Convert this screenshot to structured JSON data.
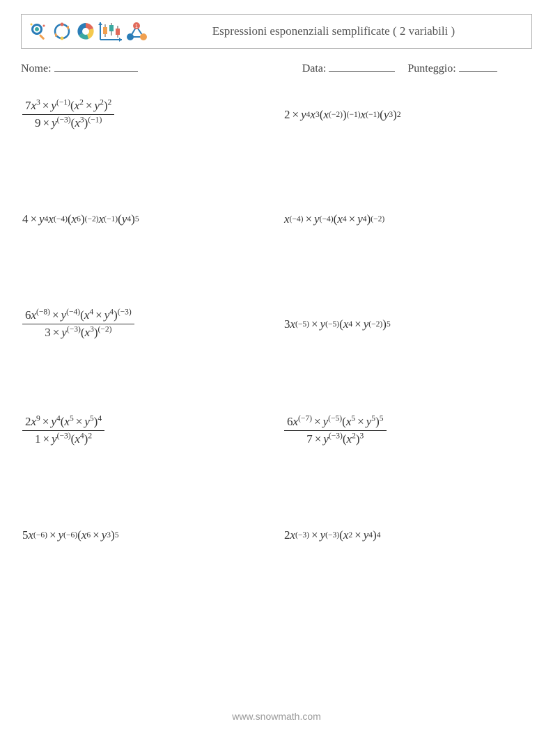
{
  "header": {
    "title": "Espressioni esponenziali semplificate ( 2 variabili )"
  },
  "meta": {
    "name_label": "Nome:",
    "date_label": "Data:",
    "score_label": "Punteggio:"
  },
  "icons": {
    "colors": {
      "blue": "#2a7db8",
      "orange": "#f0a050",
      "red": "#e26a5a",
      "teal": "#3aa8a0",
      "yellow": "#f4c94e",
      "green": "#7cb342"
    }
  },
  "problems": [
    {
      "type": "fraction",
      "numerator": [
        {
          "t": "coef",
          "v": "7"
        },
        {
          "t": "var",
          "v": "x"
        },
        {
          "t": "sup",
          "v": "3"
        },
        {
          "t": "op",
          "v": "×"
        },
        {
          "t": "var",
          "v": "y"
        },
        {
          "t": "sup",
          "v": "(−1)"
        },
        {
          "t": "txt",
          "v": "("
        },
        {
          "t": "var",
          "v": "x"
        },
        {
          "t": "sup",
          "v": "2"
        },
        {
          "t": "op",
          "v": "×"
        },
        {
          "t": "var",
          "v": "y"
        },
        {
          "t": "sup",
          "v": "2"
        },
        {
          "t": "txt",
          "v": ")"
        },
        {
          "t": "sup",
          "v": "2"
        }
      ],
      "denominator": [
        {
          "t": "coef",
          "v": "9"
        },
        {
          "t": "op",
          "v": "×"
        },
        {
          "t": "var",
          "v": "y"
        },
        {
          "t": "sup",
          "v": "(−3)"
        },
        {
          "t": "txt",
          "v": "("
        },
        {
          "t": "var",
          "v": "x"
        },
        {
          "t": "sup",
          "v": "3"
        },
        {
          "t": "txt",
          "v": ")"
        },
        {
          "t": "sup",
          "v": "(−1)"
        }
      ]
    },
    {
      "type": "inline",
      "tokens": [
        {
          "t": "coef",
          "v": "2"
        },
        {
          "t": "op",
          "v": "×"
        },
        {
          "t": "var",
          "v": "y"
        },
        {
          "t": "sup",
          "v": "4"
        },
        {
          "t": "var",
          "v": "x"
        },
        {
          "t": "sup",
          "v": "3"
        },
        {
          "t": "txt",
          "v": "("
        },
        {
          "t": "var",
          "v": "x"
        },
        {
          "t": "sup",
          "v": "(−2)"
        },
        {
          "t": "txt",
          "v": ")"
        },
        {
          "t": "sup",
          "v": "(−1)"
        },
        {
          "t": "var",
          "v": "x"
        },
        {
          "t": "sup",
          "v": "(−1)"
        },
        {
          "t": "txt",
          "v": "("
        },
        {
          "t": "var",
          "v": "y"
        },
        {
          "t": "sup",
          "v": "3"
        },
        {
          "t": "txt",
          "v": ")"
        },
        {
          "t": "sup",
          "v": "2"
        }
      ]
    },
    {
      "type": "inline",
      "tokens": [
        {
          "t": "coef",
          "v": "4"
        },
        {
          "t": "op",
          "v": "×"
        },
        {
          "t": "var",
          "v": "y"
        },
        {
          "t": "sup",
          "v": "4"
        },
        {
          "t": "var",
          "v": "x"
        },
        {
          "t": "sup",
          "v": "(−4)"
        },
        {
          "t": "txt",
          "v": "("
        },
        {
          "t": "var",
          "v": "x"
        },
        {
          "t": "sup",
          "v": "6"
        },
        {
          "t": "txt",
          "v": ")"
        },
        {
          "t": "sup",
          "v": "(−2)"
        },
        {
          "t": "var",
          "v": "x"
        },
        {
          "t": "sup",
          "v": "(−1)"
        },
        {
          "t": "txt",
          "v": "("
        },
        {
          "t": "var",
          "v": "y"
        },
        {
          "t": "sup",
          "v": "4"
        },
        {
          "t": "txt",
          "v": ")"
        },
        {
          "t": "sup",
          "v": "5"
        }
      ]
    },
    {
      "type": "inline",
      "tokens": [
        {
          "t": "var",
          "v": "x"
        },
        {
          "t": "sup",
          "v": "(−4)"
        },
        {
          "t": "op",
          "v": "×"
        },
        {
          "t": "var",
          "v": "y"
        },
        {
          "t": "sup",
          "v": "(−4)"
        },
        {
          "t": "txt",
          "v": "("
        },
        {
          "t": "var",
          "v": "x"
        },
        {
          "t": "sup",
          "v": "4"
        },
        {
          "t": "op",
          "v": "×"
        },
        {
          "t": "var",
          "v": "y"
        },
        {
          "t": "sup",
          "v": "4"
        },
        {
          "t": "txt",
          "v": ")"
        },
        {
          "t": "sup",
          "v": "(−2)"
        }
      ]
    },
    {
      "type": "fraction",
      "numerator": [
        {
          "t": "coef",
          "v": "6"
        },
        {
          "t": "var",
          "v": "x"
        },
        {
          "t": "sup",
          "v": "(−8)"
        },
        {
          "t": "op",
          "v": "×"
        },
        {
          "t": "var",
          "v": "y"
        },
        {
          "t": "sup",
          "v": "(−4)"
        },
        {
          "t": "txt",
          "v": "("
        },
        {
          "t": "var",
          "v": "x"
        },
        {
          "t": "sup",
          "v": "4"
        },
        {
          "t": "op",
          "v": "×"
        },
        {
          "t": "var",
          "v": "y"
        },
        {
          "t": "sup",
          "v": "4"
        },
        {
          "t": "txt",
          "v": ")"
        },
        {
          "t": "sup",
          "v": "(−3)"
        }
      ],
      "denominator": [
        {
          "t": "coef",
          "v": "3"
        },
        {
          "t": "op",
          "v": "×"
        },
        {
          "t": "var",
          "v": "y"
        },
        {
          "t": "sup",
          "v": "(−3)"
        },
        {
          "t": "txt",
          "v": "("
        },
        {
          "t": "var",
          "v": "x"
        },
        {
          "t": "sup",
          "v": "3"
        },
        {
          "t": "txt",
          "v": ")"
        },
        {
          "t": "sup",
          "v": "(−2)"
        }
      ]
    },
    {
      "type": "inline",
      "tokens": [
        {
          "t": "coef",
          "v": "3"
        },
        {
          "t": "var",
          "v": "x"
        },
        {
          "t": "sup",
          "v": "(−5)"
        },
        {
          "t": "op",
          "v": "×"
        },
        {
          "t": "var",
          "v": "y"
        },
        {
          "t": "sup",
          "v": "(−5)"
        },
        {
          "t": "txt",
          "v": "("
        },
        {
          "t": "var",
          "v": "x"
        },
        {
          "t": "sup",
          "v": "4"
        },
        {
          "t": "op",
          "v": "×"
        },
        {
          "t": "var",
          "v": "y"
        },
        {
          "t": "sup",
          "v": "(−2)"
        },
        {
          "t": "txt",
          "v": ")"
        },
        {
          "t": "sup",
          "v": "5"
        }
      ]
    },
    {
      "type": "fraction",
      "numerator": [
        {
          "t": "coef",
          "v": "2"
        },
        {
          "t": "var",
          "v": "x"
        },
        {
          "t": "sup",
          "v": "9"
        },
        {
          "t": "op",
          "v": "×"
        },
        {
          "t": "var",
          "v": "y"
        },
        {
          "t": "sup",
          "v": "4"
        },
        {
          "t": "txt",
          "v": "("
        },
        {
          "t": "var",
          "v": "x"
        },
        {
          "t": "sup",
          "v": "5"
        },
        {
          "t": "op",
          "v": "×"
        },
        {
          "t": "var",
          "v": "y"
        },
        {
          "t": "sup",
          "v": "5"
        },
        {
          "t": "txt",
          "v": ")"
        },
        {
          "t": "sup",
          "v": "4"
        }
      ],
      "denominator": [
        {
          "t": "coef",
          "v": "1"
        },
        {
          "t": "op",
          "v": "×"
        },
        {
          "t": "var",
          "v": "y"
        },
        {
          "t": "sup",
          "v": "(−3)"
        },
        {
          "t": "txt",
          "v": "("
        },
        {
          "t": "var",
          "v": "x"
        },
        {
          "t": "sup",
          "v": "4"
        },
        {
          "t": "txt",
          "v": ")"
        },
        {
          "t": "sup",
          "v": "2"
        }
      ]
    },
    {
      "type": "fraction",
      "numerator": [
        {
          "t": "coef",
          "v": "6"
        },
        {
          "t": "var",
          "v": "x"
        },
        {
          "t": "sup",
          "v": "(−7)"
        },
        {
          "t": "op",
          "v": "×"
        },
        {
          "t": "var",
          "v": "y"
        },
        {
          "t": "sup",
          "v": "(−5)"
        },
        {
          "t": "txt",
          "v": "("
        },
        {
          "t": "var",
          "v": "x"
        },
        {
          "t": "sup",
          "v": "5"
        },
        {
          "t": "op",
          "v": "×"
        },
        {
          "t": "var",
          "v": "y"
        },
        {
          "t": "sup",
          "v": "5"
        },
        {
          "t": "txt",
          "v": ")"
        },
        {
          "t": "sup",
          "v": "5"
        }
      ],
      "denominator": [
        {
          "t": "coef",
          "v": "7"
        },
        {
          "t": "op",
          "v": "×"
        },
        {
          "t": "var",
          "v": "y"
        },
        {
          "t": "sup",
          "v": "(−3)"
        },
        {
          "t": "txt",
          "v": "("
        },
        {
          "t": "var",
          "v": "x"
        },
        {
          "t": "sup",
          "v": "2"
        },
        {
          "t": "txt",
          "v": ")"
        },
        {
          "t": "sup",
          "v": "3"
        }
      ]
    },
    {
      "type": "inline",
      "tokens": [
        {
          "t": "coef",
          "v": "5"
        },
        {
          "t": "var",
          "v": "x"
        },
        {
          "t": "sup",
          "v": "(−6)"
        },
        {
          "t": "op",
          "v": "×"
        },
        {
          "t": "var",
          "v": "y"
        },
        {
          "t": "sup",
          "v": "(−6)"
        },
        {
          "t": "txt",
          "v": "("
        },
        {
          "t": "var",
          "v": "x"
        },
        {
          "t": "sup",
          "v": "6"
        },
        {
          "t": "op",
          "v": "×"
        },
        {
          "t": "var",
          "v": "y"
        },
        {
          "t": "sup",
          "v": "3"
        },
        {
          "t": "txt",
          "v": ")"
        },
        {
          "t": "sup",
          "v": "5"
        }
      ]
    },
    {
      "type": "inline",
      "tokens": [
        {
          "t": "coef",
          "v": "2"
        },
        {
          "t": "var",
          "v": "x"
        },
        {
          "t": "sup",
          "v": "(−3)"
        },
        {
          "t": "op",
          "v": "×"
        },
        {
          "t": "var",
          "v": "y"
        },
        {
          "t": "sup",
          "v": "(−3)"
        },
        {
          "t": "txt",
          "v": "("
        },
        {
          "t": "var",
          "v": "x"
        },
        {
          "t": "sup",
          "v": "2"
        },
        {
          "t": "op",
          "v": "×"
        },
        {
          "t": "var",
          "v": "y"
        },
        {
          "t": "sup",
          "v": "4"
        },
        {
          "t": "txt",
          "v": ")"
        },
        {
          "t": "sup",
          "v": "4"
        }
      ]
    }
  ],
  "footer": {
    "text": "www.snowmath.com"
  }
}
